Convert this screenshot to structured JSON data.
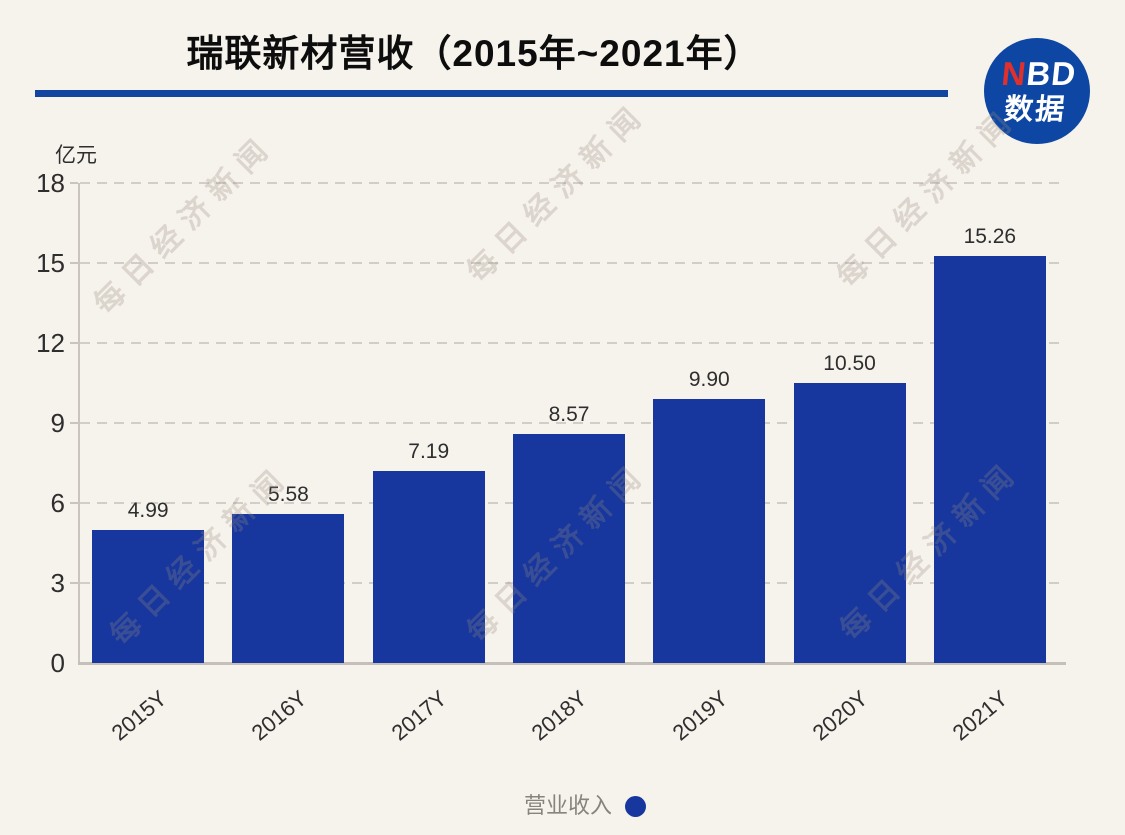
{
  "title": "瑞联新材营收（2015年~2021年）",
  "unit_label": "亿元",
  "logo": {
    "line1_red": "N",
    "line1_rest": "BD",
    "line2": "数据"
  },
  "legend": {
    "label": "营业收入"
  },
  "watermark": {
    "text": "每日经济新闻"
  },
  "colors": {
    "background": "#F6F2EC",
    "bar": "#17379E",
    "divider": "#11459F",
    "logo_circle": "#0E47A3",
    "logo_n_red": "#E0302C",
    "axis": "#C9C4BD",
    "gridline": "#D2CEC7",
    "text_dark": "#2E2E2E",
    "legend_text": "#87837D"
  },
  "chart_data": {
    "type": "bar",
    "title": "瑞联新材营收（2015年~2021年）",
    "categories": [
      "2015Y",
      "2016Y",
      "2017Y",
      "2018Y",
      "2019Y",
      "2020Y",
      "2021Y"
    ],
    "values": [
      4.99,
      5.58,
      7.19,
      8.57,
      9.9,
      10.5,
      15.26
    ],
    "data_labels": [
      "4.99",
      "5.58",
      "7.19",
      "8.57",
      "9.90",
      "10.50",
      "15.26"
    ],
    "series_name": "营业收入",
    "xlabel": "",
    "ylabel": "亿元",
    "ylim": [
      0,
      18
    ],
    "yticks": [
      0,
      3,
      6,
      9,
      12,
      15,
      18
    ],
    "grid": true,
    "legend_position": "bottom",
    "bar_color": "#17379E",
    "source_logo": "NBD数据"
  }
}
